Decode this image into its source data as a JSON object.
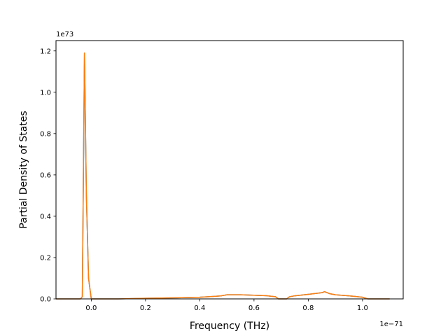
{
  "chart_data": {
    "type": "line",
    "title": "",
    "xlabel": "Frequency (THz)",
    "ylabel": "Partial Density of States",
    "x_offset_label": "1e−71",
    "y_offset_label": "1e73",
    "xlim": [
      -0.13,
      1.15
    ],
    "ylim": [
      0,
      1.25
    ],
    "x_ticks": [
      0.0,
      0.2,
      0.4,
      0.6,
      0.8,
      1.0
    ],
    "x_tick_labels": [
      "0.0",
      "0.2",
      "0.4",
      "0.6",
      "0.8",
      "1.0"
    ],
    "y_ticks": [
      0.0,
      0.2,
      0.4,
      0.6,
      0.8,
      1.0,
      1.2
    ],
    "y_tick_labels": [
      "0.0",
      "0.2",
      "0.4",
      "0.6",
      "0.8",
      "1.0",
      "1.2"
    ],
    "grid": false,
    "series": [
      {
        "color": "#1f77b4",
        "x": [
          -0.13,
          -0.04,
          -0.033,
          -0.025,
          -0.018,
          -0.01,
          0.0,
          0.05,
          0.1,
          0.2,
          0.3,
          0.4,
          0.45,
          0.48,
          0.5,
          0.55,
          0.6,
          0.65,
          0.68,
          0.69,
          0.7,
          0.72,
          0.73,
          0.75,
          0.8,
          0.85,
          0.86,
          0.88,
          0.9,
          0.95,
          1.0,
          1.02,
          1.05,
          1.1
        ],
        "y": [
          0.0,
          0.0,
          0.01,
          1.19,
          0.5,
          0.1,
          0.0,
          0.0,
          0.0,
          0.003,
          0.005,
          0.008,
          0.012,
          0.015,
          0.02,
          0.02,
          0.018,
          0.015,
          0.01,
          0.0,
          0.0,
          0.0,
          0.01,
          0.015,
          0.022,
          0.03,
          0.035,
          0.025,
          0.02,
          0.015,
          0.008,
          0.0,
          0.0,
          0.0
        ]
      },
      {
        "color": "#ff7f0e",
        "x": [
          -0.13,
          -0.04,
          -0.033,
          -0.025,
          -0.018,
          -0.01,
          0.0,
          0.05,
          0.1,
          0.2,
          0.3,
          0.4,
          0.45,
          0.48,
          0.5,
          0.55,
          0.6,
          0.65,
          0.68,
          0.69,
          0.7,
          0.72,
          0.73,
          0.75,
          0.8,
          0.85,
          0.86,
          0.88,
          0.9,
          0.95,
          1.0,
          1.02,
          1.05,
          1.1
        ],
        "y": [
          0.0,
          0.0,
          0.01,
          1.19,
          0.5,
          0.1,
          0.0,
          0.0,
          0.0,
          0.003,
          0.005,
          0.008,
          0.012,
          0.015,
          0.02,
          0.02,
          0.018,
          0.015,
          0.01,
          0.0,
          0.0,
          0.0,
          0.01,
          0.015,
          0.022,
          0.03,
          0.035,
          0.025,
          0.02,
          0.015,
          0.008,
          0.0,
          0.0,
          0.0
        ]
      }
    ]
  }
}
